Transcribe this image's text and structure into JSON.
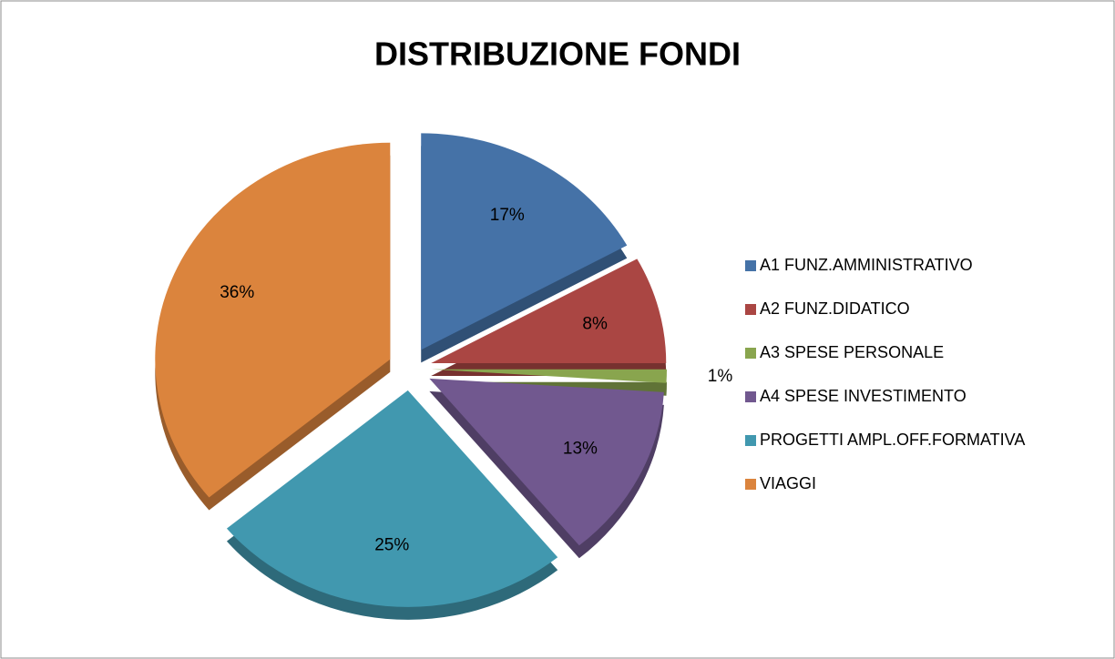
{
  "chart_data": {
    "type": "pie",
    "title": "DISTRIBUZIONE FONDI",
    "categories": [
      "A1 FUNZ.AMMINISTRATIVO",
      "A2 FUNZ.DIDATICO",
      "A3 SPESE PERSONALE",
      "A4 SPESE INVESTIMENTO",
      "PROGETTI AMPL.OFF.FORMATIVA",
      "VIAGGI"
    ],
    "values": [
      17,
      8,
      1,
      13,
      25,
      36
    ],
    "value_labels": [
      "17%",
      "8%",
      "1%",
      "13%",
      "25%",
      "36%"
    ],
    "colors": [
      "#4572a7",
      "#aa4643",
      "#89a54e",
      "#71588f",
      "#4198af",
      "#db843d"
    ],
    "legend": "right"
  }
}
